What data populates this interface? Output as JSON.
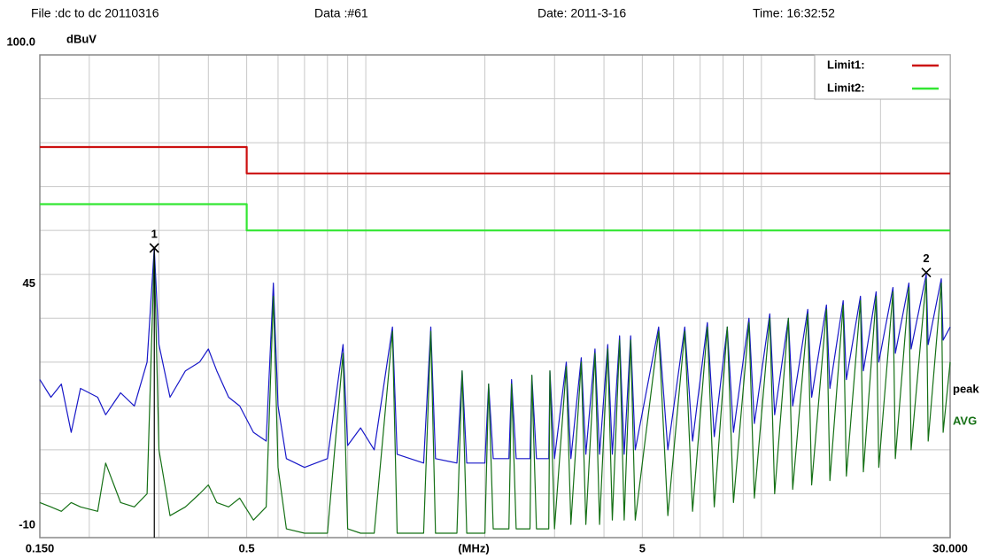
{
  "header": {
    "file": "File :dc to dc 20110316",
    "data": "Data :#61",
    "date": "Date: 2011-3-16",
    "time": "Time: 16:32:52"
  },
  "chart_data": {
    "type": "line",
    "log_x": true,
    "grid": true,
    "y_unit": "dBuV",
    "x_label": "(MHz)",
    "xlim": [
      0.15,
      30
    ],
    "ylim": [
      -10,
      100
    ],
    "xticks": [
      {
        "value": 0.15,
        "label": "0.150"
      },
      0.5,
      5,
      {
        "value": 30,
        "label": "30.000"
      }
    ],
    "yticks": [
      -10,
      45,
      {
        "value": 100,
        "label": "100.0"
      }
    ],
    "xgrid": [
      0.2,
      0.3,
      0.4,
      0.5,
      0.6,
      0.7,
      0.8,
      0.9,
      1,
      2,
      3,
      4,
      5,
      6,
      7,
      8,
      9,
      10,
      20,
      30
    ],
    "ygrid": [
      0,
      10,
      20,
      30,
      40,
      50,
      60,
      70,
      80,
      90
    ],
    "limits": [
      {
        "name": "Limit1:",
        "color": "#cc1010",
        "x": [
          0.15,
          0.5,
          0.5,
          30
        ],
        "values": [
          79,
          79,
          73,
          73
        ]
      },
      {
        "name": "Limit2:",
        "color": "#33e633",
        "x": [
          0.15,
          0.5,
          0.5,
          30
        ],
        "values": [
          66,
          66,
          60,
          60
        ]
      }
    ],
    "x": [
      0.15,
      0.16,
      0.17,
      0.18,
      0.19,
      0.21,
      0.22,
      0.24,
      0.26,
      0.28,
      0.292,
      0.3,
      0.32,
      0.35,
      0.38,
      0.4,
      0.42,
      0.45,
      0.48,
      0.52,
      0.56,
      0.584,
      0.6,
      0.63,
      0.7,
      0.8,
      0.876,
      0.9,
      0.97,
      1.05,
      1.168,
      1.2,
      1.4,
      1.46,
      1.5,
      1.7,
      1.752,
      1.8,
      2.0,
      2.044,
      2.1,
      2.3,
      2.336,
      2.4,
      2.6,
      2.628,
      2.7,
      2.9,
      2.92,
      3.0,
      3.212,
      3.3,
      3.504,
      3.6,
      3.796,
      3.9,
      4.088,
      4.2,
      4.38,
      4.5,
      4.672,
      4.8,
      5.5,
      5.8,
      6.4,
      6.7,
      7.3,
      7.6,
      8.2,
      8.5,
      9.3,
      9.6,
      10.5,
      10.8,
      11.7,
      12,
      13.1,
      13.4,
      14.6,
      14.9,
      16.1,
      16.4,
      17.8,
      18.1,
      19.5,
      19.8,
      21.5,
      21.8,
      23.6,
      23.9,
      26.1,
      26.4,
      28.5,
      28.8,
      30
    ],
    "series": [
      {
        "name": "peak",
        "color": "#1818c8",
        "values": [
          26,
          22,
          25,
          14,
          24,
          22,
          18,
          23,
          20,
          30,
          56,
          34,
          22,
          28,
          30,
          33,
          28,
          22,
          20,
          14,
          12,
          48,
          20,
          8,
          6,
          8,
          34,
          11,
          15,
          10,
          38,
          9,
          7,
          38,
          8,
          7,
          28,
          7,
          7,
          25,
          8,
          8,
          26,
          8,
          8,
          27,
          8,
          8,
          28,
          8,
          30,
          8,
          31,
          9,
          33,
          9,
          34,
          9,
          36,
          9,
          36,
          10,
          38,
          10,
          38,
          12,
          39,
          13,
          38,
          14,
          40,
          16,
          41,
          18,
          40,
          20,
          42,
          22,
          43,
          24,
          44,
          26,
          45,
          28,
          46,
          30,
          47,
          32,
          48,
          33,
          50,
          34,
          49,
          35,
          38
        ]
      },
      {
        "name": "AVG",
        "color": "#157015",
        "values": [
          -2,
          -3,
          -4,
          -2,
          -3,
          -4,
          7,
          -2,
          -3,
          0,
          55,
          10,
          -5,
          -3,
          0,
          2,
          -2,
          -3,
          -1,
          -6,
          -3,
          45,
          6,
          -8,
          -9,
          -9,
          32,
          -8,
          -9,
          -9,
          37,
          -9,
          -9,
          37,
          -9,
          -9,
          28,
          -9,
          -9,
          25,
          -8,
          -8,
          25,
          -8,
          -8,
          27,
          -8,
          -8,
          28,
          -8,
          29,
          -7,
          30,
          -7,
          32,
          -7,
          33,
          -6,
          35,
          -6,
          35,
          -6,
          37,
          -5,
          37,
          -4,
          38,
          -3,
          38,
          -2,
          39,
          -1,
          40,
          0,
          40,
          1,
          41,
          2,
          42,
          3,
          43,
          4,
          44,
          5,
          45,
          6,
          46,
          8,
          47,
          10,
          49,
          12,
          48,
          14,
          30
        ]
      }
    ],
    "markers": [
      {
        "label": "1",
        "x": 0.292,
        "y": 56
      },
      {
        "label": "2",
        "x": 26.1,
        "y": 50.4
      }
    ]
  }
}
